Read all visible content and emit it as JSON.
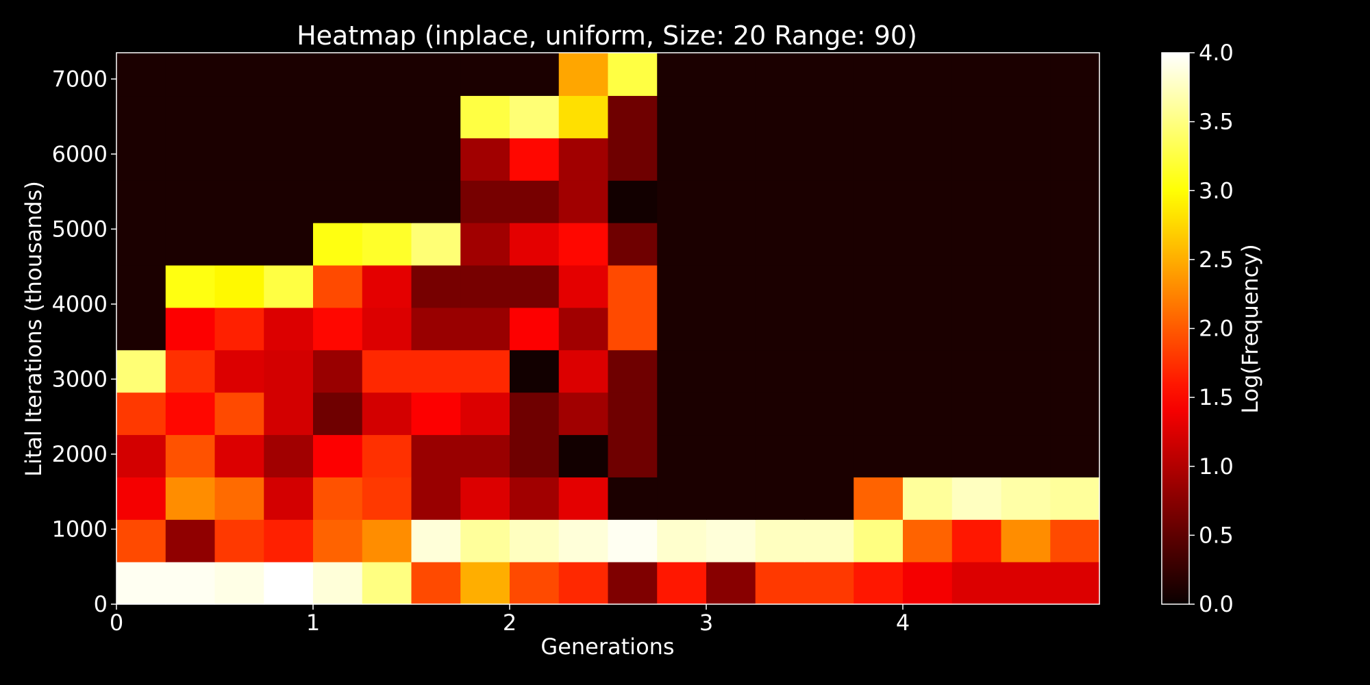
{
  "chart_data": {
    "type": "heatmap",
    "title": "Heatmap (inplace, uniform, Size: 20 Range: 90)",
    "xlabel": "Generations",
    "ylabel": "Lital Iterations (thousands)",
    "colorbar_label": "Log(Frequency)",
    "colormap": "hot",
    "background": "#000000",
    "text_color": "#ffffff",
    "xlim": [
      0,
      5
    ],
    "ylim": [
      0,
      7350
    ],
    "clim": [
      0,
      4
    ],
    "x_ticks": [
      0,
      1,
      2,
      3,
      4
    ],
    "x_tick_labels": [
      "0",
      "1",
      "2",
      "3",
      "4"
    ],
    "y_ticks": [
      0,
      1000,
      2000,
      3000,
      4000,
      5000,
      6000,
      7000
    ],
    "y_tick_labels": [
      "0",
      "1000",
      "2000",
      "3000",
      "4000",
      "5000",
      "6000",
      "7000"
    ],
    "colorbar_ticks": [
      0,
      0.5,
      1,
      1.5,
      2,
      2.5,
      3,
      3.5,
      4
    ],
    "colorbar_tick_labels": [
      "0.0",
      "0.5",
      "1.0",
      "1.5",
      "2.0",
      "2.5",
      "3.0",
      "3.5",
      "4.0"
    ],
    "x_bin_edges": [
      0,
      0.25,
      0.5,
      0.75,
      1,
      1.25,
      1.5,
      1.75,
      2,
      2.25,
      2.5,
      2.75,
      3,
      3.25,
      3.5,
      3.75,
      4,
      4.25,
      4.5,
      4.75,
      5
    ],
    "y_bin_edges": [
      0,
      565,
      1130,
      1695,
      2260,
      2825,
      3390,
      3955,
      4520,
      5085,
      5650,
      6215,
      6780,
      7345
    ],
    "z": [
      [
        3.95,
        3.95,
        3.9,
        4.0,
        3.85,
        3.5,
        1.9,
        2.5,
        1.9,
        1.7,
        0.7,
        1.6,
        0.75,
        1.8,
        1.8,
        1.6,
        1.4,
        1.25,
        1.25,
        1.25
      ],
      [
        1.9,
        0.8,
        1.8,
        1.65,
        2.05,
        2.3,
        3.85,
        3.6,
        3.75,
        3.85,
        3.95,
        3.8,
        3.85,
        3.75,
        3.75,
        3.5,
        2.05,
        1.6,
        2.3,
        1.9
      ],
      [
        1.4,
        2.3,
        2.1,
        1.2,
        1.95,
        1.8,
        0.85,
        1.25,
        0.9,
        1.3,
        0.1,
        0.1,
        0.1,
        0.1,
        0.1,
        2.05,
        3.6,
        3.75,
        3.65,
        3.6
      ],
      [
        1.2,
        1.95,
        1.25,
        0.9,
        1.45,
        1.75,
        0.85,
        0.85,
        0.6,
        0.05,
        0.6,
        0.1,
        0.1,
        0.1,
        0.1,
        0.1,
        0.1,
        0.1,
        0.1,
        0.1
      ],
      [
        1.8,
        1.5,
        1.9,
        1.2,
        0.6,
        1.2,
        1.45,
        1.25,
        0.6,
        0.9,
        0.6,
        0.1,
        0.1,
        0.1,
        0.1,
        0.1,
        0.1,
        0.1,
        0.1,
        0.1
      ],
      [
        3.45,
        1.75,
        1.25,
        1.2,
        0.85,
        1.7,
        1.7,
        1.7,
        0.05,
        1.25,
        0.6,
        0.1,
        0.1,
        0.1,
        0.1,
        0.1,
        0.1,
        0.1,
        0.1,
        0.1
      ],
      [
        0.1,
        1.45,
        1.65,
        1.25,
        1.5,
        1.25,
        0.85,
        0.85,
        1.45,
        0.9,
        1.9,
        0.1,
        0.1,
        0.1,
        0.1,
        0.1,
        0.1,
        0.1,
        0.1,
        0.1
      ],
      [
        0.1,
        3.05,
        2.95,
        3.25,
        1.9,
        1.3,
        0.65,
        0.65,
        0.65,
        1.3,
        1.9,
        0.1,
        0.1,
        0.1,
        0.1,
        0.1,
        0.1,
        0.1,
        0.1,
        0.1
      ],
      [
        0.1,
        0.1,
        0.1,
        0.1,
        3.05,
        3.15,
        3.45,
        0.9,
        1.3,
        1.5,
        0.6,
        0.1,
        0.1,
        0.1,
        0.1,
        0.1,
        0.1,
        0.1,
        0.1,
        0.1
      ],
      [
        0.1,
        0.1,
        0.1,
        0.1,
        0.1,
        0.1,
        0.1,
        0.65,
        0.65,
        0.9,
        0.05,
        0.1,
        0.1,
        0.1,
        0.1,
        0.1,
        0.1,
        0.1,
        0.1,
        0.1
      ],
      [
        0.1,
        0.1,
        0.1,
        0.1,
        0.1,
        0.1,
        0.1,
        0.9,
        1.5,
        0.9,
        0.6,
        0.1,
        0.1,
        0.1,
        0.1,
        0.1,
        0.1,
        0.1,
        0.1,
        0.1
      ],
      [
        0.1,
        0.1,
        0.1,
        0.1,
        0.1,
        0.1,
        0.1,
        3.25,
        3.45,
        2.8,
        0.6,
        0.1,
        0.1,
        0.1,
        0.1,
        0.1,
        0.1,
        0.1,
        0.1,
        0.1
      ],
      [
        0.1,
        0.1,
        0.1,
        0.1,
        0.1,
        0.1,
        0.1,
        0.1,
        0.1,
        2.45,
        3.25,
        0.1,
        0.1,
        0.1,
        0.1,
        0.1,
        0.1,
        0.1,
        0.1,
        0.1
      ]
    ]
  }
}
